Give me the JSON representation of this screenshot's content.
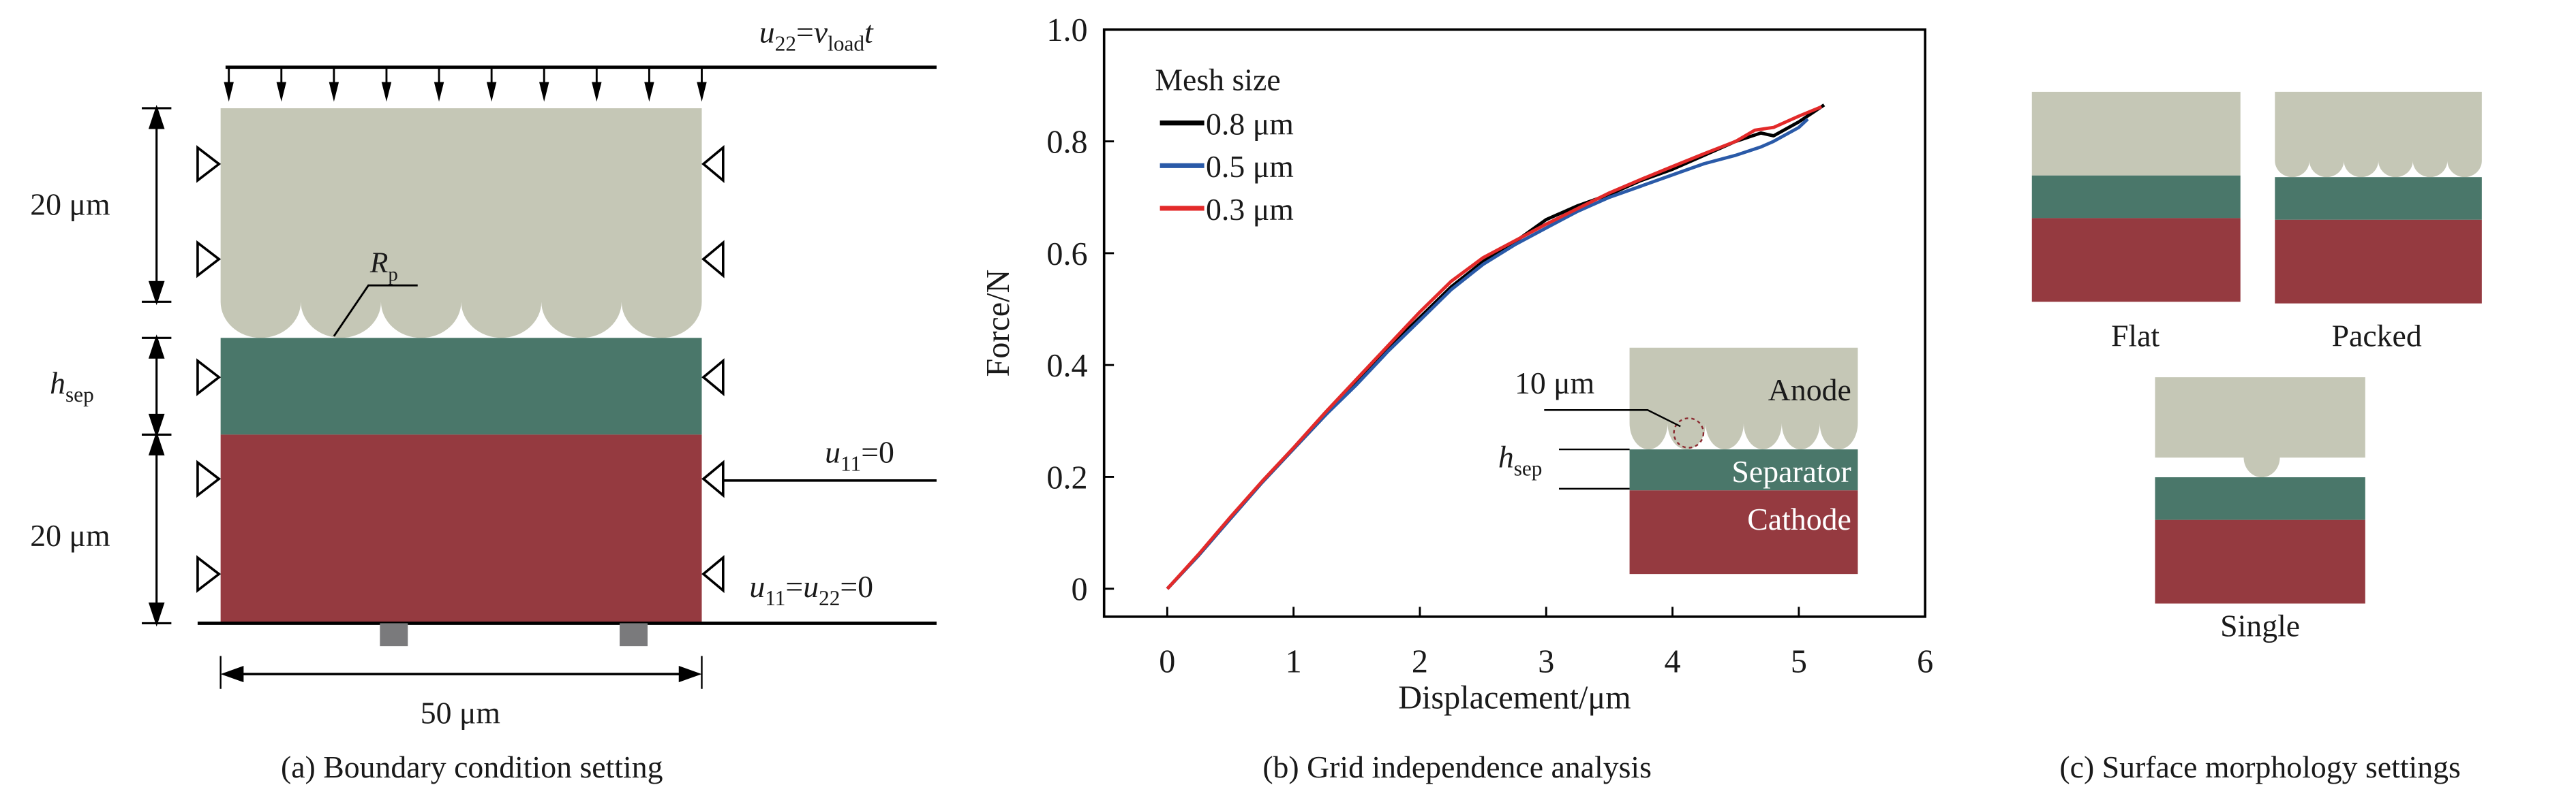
{
  "colors": {
    "anode": "#c5c7b6",
    "separator": "#4a776a",
    "cathode": "#953a40",
    "support": "#7a7a7c",
    "line": "#000000"
  },
  "panel_a": {
    "caption": "(a) Boundary condition setting",
    "load_label": {
      "u": "u",
      "u_sub": "22",
      "eq": "=",
      "v": "v",
      "v_sub": "load",
      "t": "t"
    },
    "right_mid_label": {
      "u": "u",
      "sub": "11",
      "rest": "=0"
    },
    "right_bottom_label": {
      "u1": "u",
      "sub1": "11",
      "eq": "=",
      "u2": "u",
      "sub2": "22",
      "rest": "=0"
    },
    "dim_top": "20 μm",
    "dim_sep": {
      "h": "h",
      "sub": "sep"
    },
    "dim_bottom": "20 μm",
    "dim_width": "50 μm",
    "radius_label": {
      "r": "R",
      "sub": "p"
    }
  },
  "panel_c": {
    "caption": "(c) Surface morphology settings",
    "labels": [
      "Flat",
      "Packed",
      "Single"
    ]
  },
  "chart_data": {
    "type": "line",
    "title": "(b) Grid independence analysis",
    "xlabel": "Displacement/μm",
    "ylabel": "Force/N",
    "xlim": [
      -0.5,
      6
    ],
    "ylim": [
      -0.05,
      1.0
    ],
    "xticks": [
      0,
      1,
      2,
      3,
      4,
      5,
      6
    ],
    "yticks": [
      0,
      0.2,
      0.4,
      0.6,
      0.8,
      1.0
    ],
    "ytick_labels": [
      "0",
      "0.2",
      "0.4",
      "0.6",
      "0.8",
      "1.0"
    ],
    "grid": false,
    "legend": {
      "title": "Mesh size",
      "position": "top-left"
    },
    "series": [
      {
        "name": "0.8 μm",
        "color": "#000000",
        "x": [
          0,
          0.25,
          0.5,
          0.75,
          1.0,
          1.25,
          1.5,
          1.75,
          2.0,
          2.25,
          2.5,
          2.75,
          3.0,
          3.25,
          3.5,
          3.75,
          4.0,
          4.25,
          4.5,
          4.7,
          4.8,
          5.0,
          5.2
        ],
        "y": [
          0,
          0.06,
          0.125,
          0.19,
          0.25,
          0.31,
          0.37,
          0.43,
          0.485,
          0.54,
          0.585,
          0.62,
          0.66,
          0.685,
          0.705,
          0.73,
          0.75,
          0.775,
          0.8,
          0.815,
          0.81,
          0.835,
          0.865
        ]
      },
      {
        "name": "0.5 μm",
        "color": "#2a5aa8",
        "x": [
          0,
          0.25,
          0.5,
          0.75,
          1.0,
          1.25,
          1.5,
          1.75,
          2.0,
          2.25,
          2.5,
          2.75,
          3.0,
          3.25,
          3.5,
          3.75,
          4.0,
          4.25,
          4.5,
          4.7,
          4.8,
          5.0,
          5.07
        ],
        "y": [
          0,
          0.06,
          0.125,
          0.19,
          0.25,
          0.31,
          0.365,
          0.425,
          0.48,
          0.535,
          0.58,
          0.615,
          0.645,
          0.675,
          0.7,
          0.72,
          0.74,
          0.76,
          0.775,
          0.79,
          0.8,
          0.825,
          0.84
        ]
      },
      {
        "name": "0.3 μm",
        "color": "#e32a2a",
        "x": [
          0,
          0.25,
          0.5,
          0.75,
          1.0,
          1.25,
          1.5,
          1.75,
          2.0,
          2.25,
          2.5,
          2.75,
          3.0,
          3.25,
          3.5,
          3.75,
          4.0,
          4.25,
          4.5,
          4.65,
          4.8,
          5.0,
          5.18
        ],
        "y": [
          0,
          0.062,
          0.128,
          0.192,
          0.252,
          0.315,
          0.375,
          0.435,
          0.495,
          0.55,
          0.592,
          0.622,
          0.652,
          0.68,
          0.708,
          0.732,
          0.755,
          0.778,
          0.8,
          0.82,
          0.825,
          0.845,
          0.862
        ]
      }
    ],
    "inset": {
      "labels": {
        "dim": "10 μm",
        "anode": "Anode",
        "separator": "Separator",
        "cathode": "Cathode",
        "h": "h",
        "h_sub": "sep"
      }
    }
  }
}
